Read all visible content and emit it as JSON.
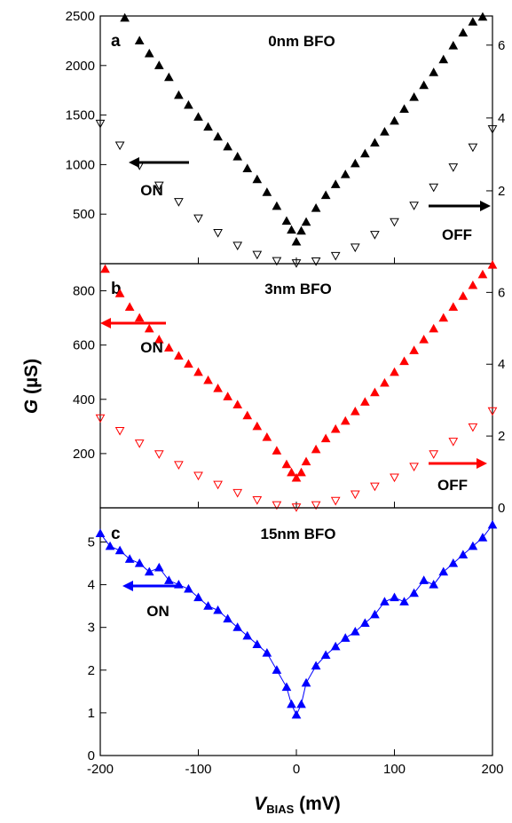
{
  "axes": {
    "ylabel_main": "G",
    "ylabel_unit": " (µS)",
    "xlabel_main": "V",
    "xlabel_sub": "BIAS",
    "xlabel_unit": " (mV)"
  },
  "colors": {
    "panel_a": "#000000",
    "panel_b": "#ff0000",
    "panel_c": "#0000ff"
  },
  "chart_data": [
    {
      "type": "scatter",
      "panel": "a",
      "title": "0nm BFO",
      "xlim": [
        -200,
        200
      ],
      "ylim_left": [
        0,
        2500
      ],
      "ylim_right": [
        0,
        6.8
      ],
      "x_ticks": [
        -200,
        -100,
        0,
        100,
        200
      ],
      "y_ticks_left": [
        500,
        1000,
        1500,
        2000,
        2500
      ],
      "y_ticks_right": [
        2,
        4,
        6
      ],
      "annotations": [
        {
          "text": "ON",
          "arrow": "left",
          "axis": "left"
        },
        {
          "text": "OFF",
          "arrow": "right",
          "axis": "right"
        }
      ],
      "series": [
        {
          "name": "ON",
          "marker": "filled-triangle-up",
          "axis": "left",
          "x": [
            -175,
            -160,
            -150,
            -140,
            -130,
            -120,
            -110,
            -100,
            -90,
            -80,
            -70,
            -60,
            -50,
            -40,
            -30,
            -20,
            -10,
            -5,
            0,
            5,
            10,
            20,
            30,
            40,
            50,
            60,
            70,
            80,
            90,
            100,
            110,
            120,
            130,
            140,
            150,
            160,
            170,
            180,
            190
          ],
          "y": [
            2480,
            2250,
            2120,
            2000,
            1880,
            1700,
            1600,
            1480,
            1380,
            1280,
            1180,
            1080,
            960,
            850,
            720,
            580,
            430,
            340,
            220,
            330,
            420,
            560,
            690,
            800,
            900,
            1010,
            1110,
            1220,
            1330,
            1440,
            1560,
            1680,
            1800,
            1930,
            2060,
            2200,
            2330,
            2440,
            2490
          ]
        },
        {
          "name": "OFF",
          "marker": "open-triangle-down",
          "axis": "right",
          "x": [
            -200,
            -180,
            -160,
            -140,
            -120,
            -100,
            -80,
            -60,
            -40,
            -20,
            0,
            20,
            40,
            60,
            80,
            100,
            120,
            140,
            160,
            180,
            200
          ],
          "y": [
            3.85,
            3.25,
            2.7,
            2.15,
            1.7,
            1.25,
            0.85,
            0.5,
            0.25,
            0.08,
            0.02,
            0.07,
            0.22,
            0.45,
            0.8,
            1.15,
            1.6,
            2.1,
            2.65,
            3.2,
            3.7
          ]
        }
      ]
    },
    {
      "type": "scatter",
      "panel": "b",
      "title": "3nm BFO",
      "xlim": [
        -200,
        200
      ],
      "ylim_left": [
        0,
        900
      ],
      "ylim_right": [
        0,
        6.8
      ],
      "x_ticks": [
        -200,
        -100,
        0,
        100,
        200
      ],
      "y_ticks_left": [
        200,
        400,
        600,
        800
      ],
      "y_ticks_right": [
        0,
        2,
        4,
        6
      ],
      "annotations": [
        {
          "text": "ON",
          "arrow": "left",
          "axis": "left"
        },
        {
          "text": "OFF",
          "arrow": "right",
          "axis": "right"
        }
      ],
      "series": [
        {
          "name": "ON",
          "marker": "filled-triangle-up",
          "axis": "left",
          "x": [
            -195,
            -180,
            -170,
            -160,
            -150,
            -140,
            -130,
            -120,
            -110,
            -100,
            -90,
            -80,
            -70,
            -60,
            -50,
            -40,
            -30,
            -20,
            -10,
            -5,
            0,
            5,
            10,
            20,
            30,
            40,
            50,
            60,
            70,
            80,
            90,
            100,
            110,
            120,
            130,
            140,
            150,
            160,
            170,
            180,
            190,
            200
          ],
          "y": [
            880,
            790,
            740,
            700,
            660,
            620,
            590,
            560,
            530,
            500,
            470,
            440,
            410,
            380,
            340,
            300,
            260,
            210,
            160,
            130,
            110,
            130,
            170,
            215,
            255,
            290,
            320,
            355,
            390,
            425,
            460,
            500,
            540,
            580,
            620,
            660,
            700,
            740,
            780,
            820,
            860,
            895
          ]
        },
        {
          "name": "OFF",
          "marker": "open-triangle-down",
          "axis": "right",
          "x": [
            -200,
            -180,
            -160,
            -140,
            -120,
            -100,
            -80,
            -60,
            -40,
            -20,
            0,
            20,
            40,
            60,
            80,
            100,
            120,
            140,
            160,
            180,
            200
          ],
          "y": [
            2.5,
            2.15,
            1.8,
            1.5,
            1.2,
            0.9,
            0.65,
            0.42,
            0.22,
            0.08,
            0.02,
            0.08,
            0.2,
            0.38,
            0.6,
            0.85,
            1.15,
            1.5,
            1.85,
            2.25,
            2.7
          ]
        }
      ]
    },
    {
      "type": "line",
      "panel": "c",
      "title": "15nm BFO",
      "xlim": [
        -200,
        200
      ],
      "ylim": [
        0,
        5.8
      ],
      "x_ticks": [
        -200,
        -100,
        0,
        100,
        200
      ],
      "y_ticks": [
        0,
        1,
        2,
        3,
        4,
        5
      ],
      "annotations": [
        {
          "text": "ON",
          "arrow": "left",
          "axis": "left"
        }
      ],
      "series": [
        {
          "name": "ON",
          "marker": "filled-triangle-up",
          "axis": "left",
          "x": [
            -200,
            -190,
            -180,
            -170,
            -160,
            -150,
            -140,
            -130,
            -120,
            -110,
            -100,
            -90,
            -80,
            -70,
            -60,
            -50,
            -40,
            -30,
            -20,
            -10,
            -5,
            0,
            5,
            10,
            20,
            30,
            40,
            50,
            60,
            70,
            80,
            90,
            100,
            110,
            120,
            130,
            140,
            150,
            160,
            170,
            180,
            190,
            200
          ],
          "y": [
            5.2,
            4.9,
            4.8,
            4.6,
            4.5,
            4.3,
            4.4,
            4.1,
            4.0,
            3.9,
            3.7,
            3.5,
            3.4,
            3.2,
            3.0,
            2.8,
            2.6,
            2.4,
            2.0,
            1.6,
            1.2,
            0.95,
            1.2,
            1.7,
            2.1,
            2.35,
            2.55,
            2.75,
            2.9,
            3.1,
            3.3,
            3.6,
            3.7,
            3.6,
            3.8,
            4.1,
            4.0,
            4.3,
            4.5,
            4.7,
            4.9,
            5.1,
            5.4
          ]
        }
      ]
    }
  ]
}
